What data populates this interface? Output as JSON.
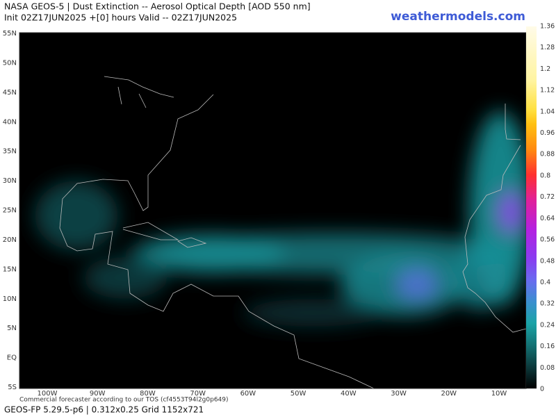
{
  "header": {
    "title_line1": "NASA GEOS-5 | Dust Extinction -- Aerosol Optical Depth [AOD 550 nm]",
    "title_line2": "Init 02Z17JUN2025 +[0] hours Valid -- 02Z17JUN2025",
    "site": "weathermodels.com"
  },
  "map": {
    "lat_labels": [
      "55N",
      "50N",
      "45N",
      "40N",
      "35N",
      "30N",
      "25N",
      "20N",
      "15N",
      "10N",
      "5N",
      "EQ",
      "5S"
    ],
    "lon_labels": [
      "100W",
      "90W",
      "80W",
      "70W",
      "60W",
      "50W",
      "40W",
      "30W",
      "20W",
      "10W"
    ]
  },
  "colorbar": {
    "ticks": [
      "1.36",
      "1.28",
      "1.2",
      "1.12",
      "1.04",
      "0.96",
      "0.88",
      "0.8",
      "0.72",
      "0.64",
      "0.56",
      "0.48",
      "0.4",
      "0.32",
      "0.24",
      "0.16",
      "0.08",
      "0"
    ]
  },
  "footer": {
    "note": "Commercial forecaster according to our TOS (cf4553T94l2g0p649)",
    "info": "GEOS-FP 5.29.5-p6 | 0.312x0.25 Grid 1152x721"
  }
}
